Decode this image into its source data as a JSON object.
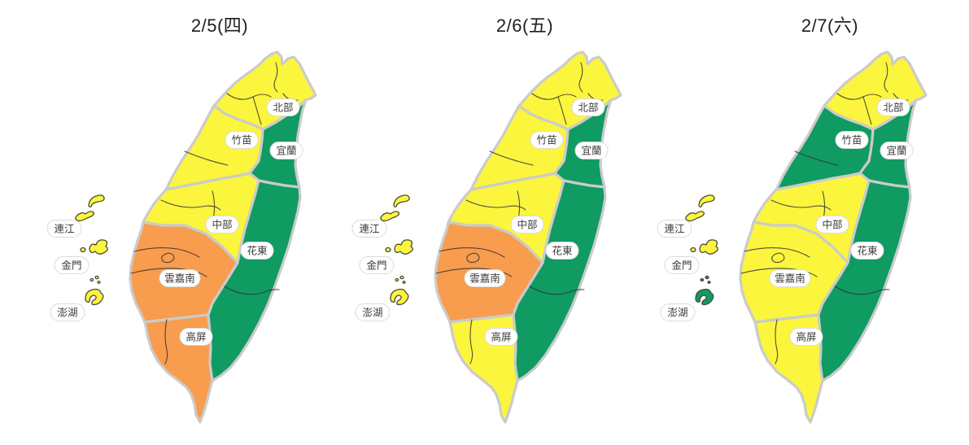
{
  "page": {
    "background": "#ffffff"
  },
  "legend_colors": {
    "yellow": "#FBF53D",
    "orange": "#F89C4E",
    "green": "#0F9B62"
  },
  "map_style": {
    "region_border": "#CBCBCB",
    "county_line": "#333333",
    "island_outline": "#4A4A3A",
    "label_bg": "#FFFFFF",
    "label_border": "#DBDBDB",
    "label_text": "#3C3C3C",
    "title_text": "#1E1E1E"
  },
  "region_labels": {
    "north": "北部",
    "chumiao": "竹苗",
    "yilan": "宜蘭",
    "central": "中部",
    "huadong": "花東",
    "yunchianan": "雲嘉南",
    "kaoping": "高屏",
    "lienchiang": "連江",
    "kinmen": "金門",
    "penghu": "澎湖"
  },
  "days": [
    {
      "title": "2/5(四)",
      "regions": {
        "north": "yellow",
        "chumiao": "yellow",
        "yilan": "green",
        "central": "yellow",
        "huadong": "green",
        "yunchianan": "orange",
        "kaoping": "orange",
        "lienchiang": "yellow",
        "kinmen": "yellow",
        "penghu": "yellow"
      }
    },
    {
      "title": "2/6(五)",
      "regions": {
        "north": "yellow",
        "chumiao": "yellow",
        "yilan": "green",
        "central": "yellow",
        "huadong": "green",
        "yunchianan": "orange",
        "kaoping": "yellow",
        "lienchiang": "yellow",
        "kinmen": "yellow",
        "penghu": "yellow"
      }
    },
    {
      "title": "2/7(六)",
      "regions": {
        "north": "yellow",
        "chumiao": "green",
        "yilan": "green",
        "central": "yellow",
        "huadong": "green",
        "yunchianan": "yellow",
        "kaoping": "yellow",
        "lienchiang": "yellow",
        "kinmen": "yellow",
        "penghu": "green"
      }
    }
  ]
}
